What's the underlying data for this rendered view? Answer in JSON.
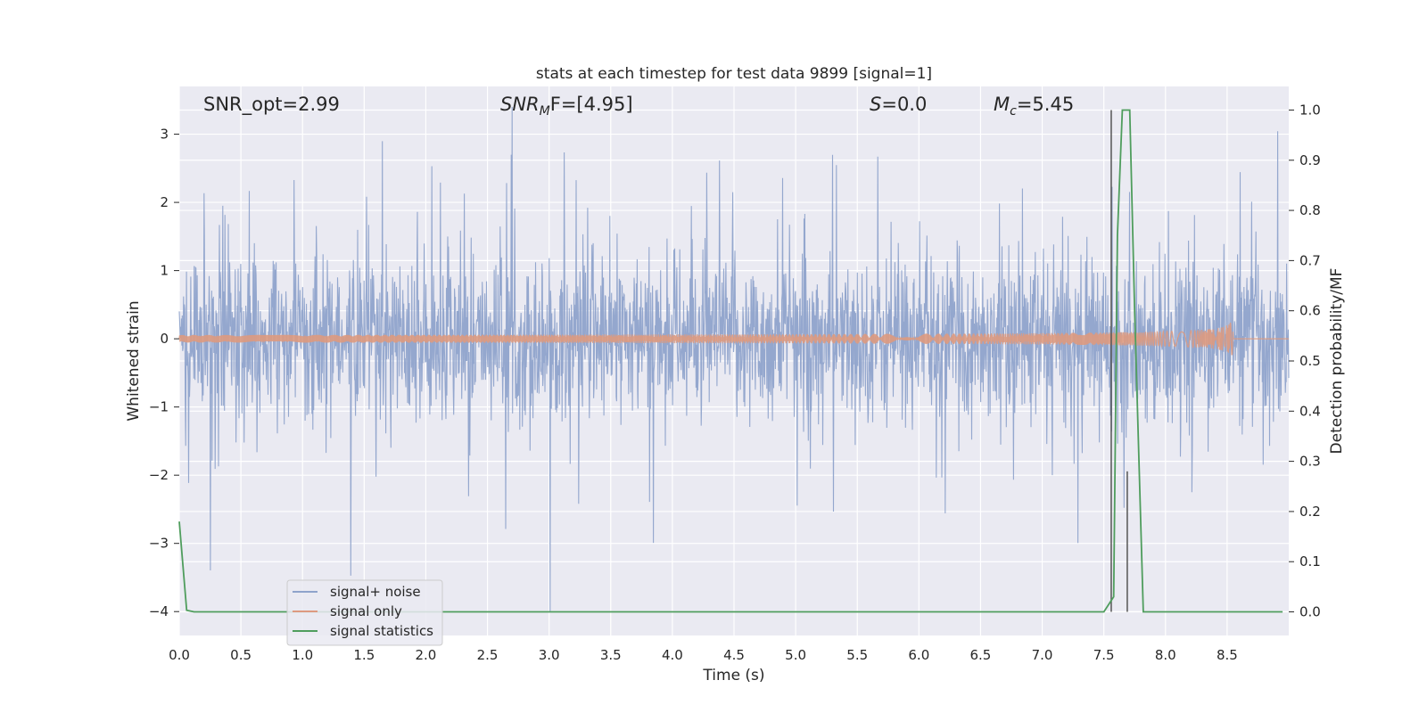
{
  "chart_data": {
    "type": "line",
    "title": "stats at each timestep for test data 9899 [signal=1]",
    "xlabel": "Time (s)",
    "ylabel": "Whitened strain",
    "ylabel_right": "Detection probability/MF",
    "xlim": [
      0.0,
      9.0
    ],
    "ylim": [
      -4.35,
      3.7
    ],
    "ylim_right": [
      -0.047,
      1.047
    ],
    "grid": true,
    "legend_position": "lower-left",
    "x_ticks": [
      "0.0",
      "0.5",
      "1.0",
      "1.5",
      "2.0",
      "2.5",
      "3.0",
      "3.5",
      "4.0",
      "4.5",
      "5.0",
      "5.5",
      "6.0",
      "6.5",
      "7.0",
      "7.5",
      "8.0",
      "8.5"
    ],
    "y_ticks": [
      "3",
      "2",
      "1",
      "0",
      "−1",
      "−2",
      "−3",
      "−4"
    ],
    "y_ticks_right": [
      "1.0",
      "0.9",
      "0.8",
      "0.7",
      "0.6",
      "0.5",
      "0.4",
      "0.3",
      "0.2",
      "0.1",
      "0.0"
    ],
    "annotations": {
      "snr_opt": "SNR_opt=2.99",
      "snr_mf_main": "SNR",
      "snr_mf_sub": "M",
      "snr_mf_rest": "F=[4.95]",
      "s_italic": "S",
      "s_rest": "=0.0",
      "mc_main": "M",
      "mc_sub": "c",
      "mc_rest": "=5.45"
    },
    "series": [
      {
        "name": "signal+ noise",
        "color": "#8fa3cb",
        "typical_amplitude": 1.2,
        "peak_amplitude": 3.4
      },
      {
        "name": "signal only",
        "color": "#dd9a80",
        "chirp_end_time": 8.55,
        "chirp_peak_amplitude": 0.25
      },
      {
        "name": "signal statistics",
        "color": "#4f9d5d",
        "axis": "right",
        "x": [
          0.0,
          0.06,
          0.12,
          7.5,
          7.58,
          7.61,
          7.65,
          7.71,
          7.75,
          7.82,
          8.95
        ],
        "values": [
          0.18,
          0.003,
          0.0,
          0.0,
          0.03,
          0.75,
          1.0,
          1.0,
          0.6,
          0.0,
          0.0
        ]
      }
    ],
    "markers": [
      {
        "x": 7.56,
        "y_top": 1.0
      },
      {
        "x": 7.69,
        "y_top": 0.28
      }
    ]
  }
}
